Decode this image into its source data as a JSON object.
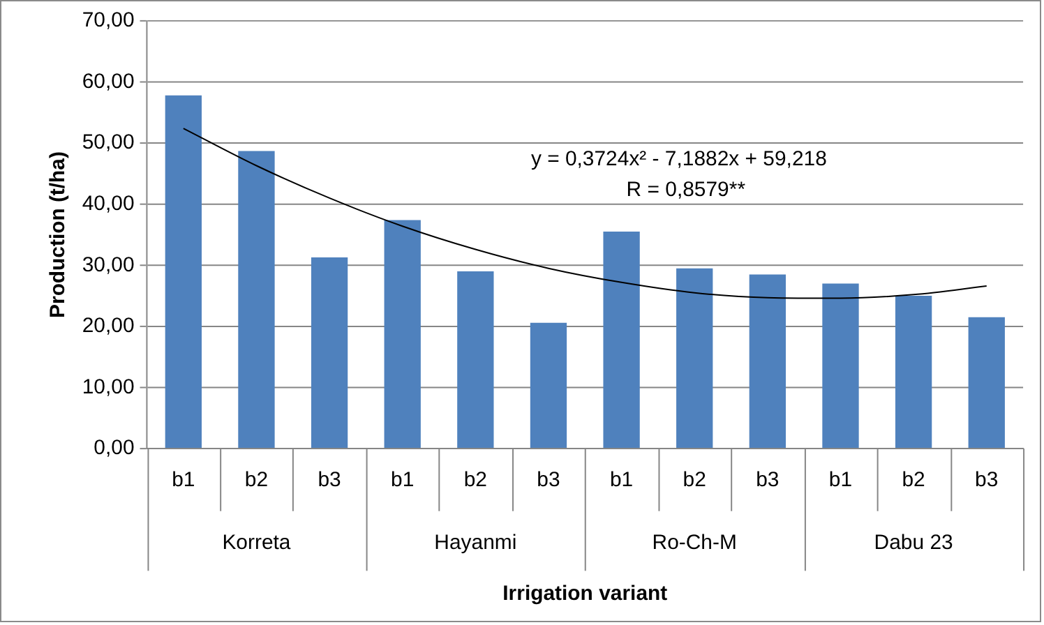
{
  "chart_data": {
    "type": "bar",
    "xlabel": "Irrigation variant",
    "ylabel": "Production (t/ha)",
    "categories": [
      "b1",
      "b2",
      "b3",
      "b1",
      "b2",
      "b3",
      "b1",
      "b2",
      "b3",
      "b1",
      "b2",
      "b3"
    ],
    "series": [
      {
        "color": "#4f81bd",
        "values": [
          57.8,
          48.7,
          31.3,
          37.4,
          29.0,
          20.6,
          35.5,
          29.5,
          28.5,
          27.0,
          25.0,
          21.5
        ]
      },
      {
        "type": "line",
        "color": "#000000",
        "values": [
          52.4,
          46.3,
          41.0,
          36.4,
          32.6,
          29.5,
          27.2,
          25.5,
          24.7,
          24.6,
          25.2,
          26.6
        ]
      }
    ],
    "ylim": [
      0,
      70
    ],
    "yticks": [
      {
        "value": 0,
        "label": "0,00"
      },
      {
        "value": 10,
        "label": "10,00"
      },
      {
        "value": 20,
        "label": "20,00"
      },
      {
        "value": 30,
        "label": "30,00"
      },
      {
        "value": 40,
        "label": "40,00"
      },
      {
        "value": 50,
        "label": "50,00"
      },
      {
        "value": 60,
        "label": "60,00"
      },
      {
        "value": 70,
        "label": "70,00"
      }
    ],
    "grid": "y",
    "legend": false,
    "marker": "none",
    "line_style": "solid",
    "annotations": [
      "y = 0,3724x² - 7,1882x + 59,218",
      "R = 0,8579**",
      "Korreta",
      "Hayanmi",
      "Ro-Ch-M",
      "Dabu 23"
    ]
  }
}
